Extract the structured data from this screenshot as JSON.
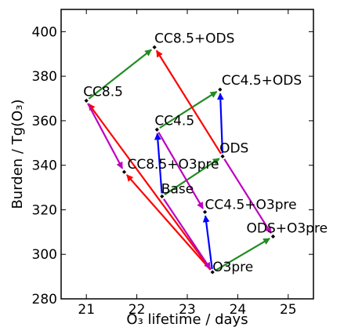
{
  "chart_data": {
    "type": "scatter",
    "xlabel": "O₃ lifetime / days",
    "ylabel": "Burden / Tg(O₃)",
    "xlim": [
      20.5,
      25.5
    ],
    "ylim": [
      280,
      410
    ],
    "x_ticks": [
      21,
      22,
      23,
      24,
      25
    ],
    "y_ticks": [
      280,
      300,
      320,
      340,
      360,
      380,
      400
    ],
    "grid": false,
    "points": [
      {
        "label": "CC8.5+ODS",
        "x": 22.35,
        "y": 393
      },
      {
        "label": "CC4.5+ODS",
        "x": 23.65,
        "y": 374
      },
      {
        "label": "CC8.5",
        "x": 21.0,
        "y": 369
      },
      {
        "label": "CC4.5",
        "x": 22.4,
        "y": 356
      },
      {
        "label": "ODS",
        "x": 23.7,
        "y": 344
      },
      {
        "label": "CC8.5+O3pre",
        "x": 21.75,
        "y": 337
      },
      {
        "label": "Base",
        "x": 22.5,
        "y": 326
      },
      {
        "label": "CC4.5+O3pre",
        "x": 23.35,
        "y": 319
      },
      {
        "label": "ODS+O3pre",
        "x": 24.7,
        "y": 308
      },
      {
        "label": "O3pre",
        "x": 23.5,
        "y": 292
      }
    ],
    "arrows": [
      {
        "from": "CC8.5",
        "to": "CC8.5+ODS",
        "color": "#228b22"
      },
      {
        "from": "CC4.5",
        "to": "CC4.5+ODS",
        "color": "#228b22"
      },
      {
        "from": "Base",
        "to": "ODS",
        "color": "#228b22"
      },
      {
        "from": "O3pre",
        "to": "ODS+O3pre",
        "color": "#228b22"
      },
      {
        "from": "Base",
        "to": "CC4.5",
        "color": "#0000ff"
      },
      {
        "from": "ODS",
        "to": "CC4.5+ODS",
        "color": "#0000ff"
      },
      {
        "from": "O3pre",
        "to": "CC4.5+O3pre",
        "color": "#0000ff"
      },
      {
        "from": "ODS",
        "to": "CC8.5+ODS",
        "color": "#ff0000"
      },
      {
        "from": "O3pre",
        "to": "CC8.5",
        "color": "#ff0000"
      },
      {
        "from": "O3pre",
        "to": "CC8.5+O3pre",
        "color": "#ff0000"
      },
      {
        "from": "CC8.5",
        "to": "CC8.5+O3pre",
        "color": "#bf00bf"
      },
      {
        "from": "CC4.5",
        "to": "CC4.5+O3pre",
        "color": "#bf00bf"
      },
      {
        "from": "Base",
        "to": "O3pre",
        "color": "#bf00bf"
      },
      {
        "from": "ODS",
        "to": "ODS+O3pre",
        "color": "#bf00bf"
      }
    ]
  }
}
